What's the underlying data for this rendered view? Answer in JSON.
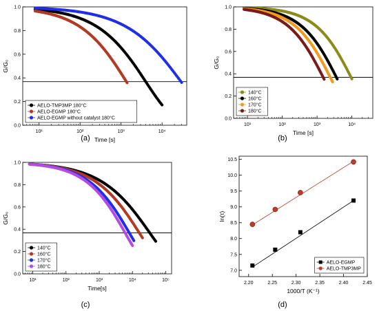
{
  "panel_labels": [
    "(a)",
    "(b)",
    "(c)",
    "(d)"
  ],
  "colors": {
    "black": "#000000",
    "brown": "#b33a23",
    "blue": "#1f2fe6",
    "olive": "#8c8a1a",
    "orange": "#f39a1e",
    "darkred": "#7a1a1a",
    "purple": "#b44be3",
    "crimson": "#c0392b"
  },
  "chart_data": [
    {
      "type": "line",
      "panel": "(a)",
      "xlabel": "Time [s]",
      "ylabel": "G/G₀",
      "xscale": "log",
      "xlim": [
        4,
        40000
      ],
      "ylim": [
        0,
        1.0
      ],
      "xticks": [
        {
          "v": 10,
          "label": "10¹"
        },
        {
          "v": 100,
          "label": "10²"
        },
        {
          "v": 1000,
          "label": "10³"
        },
        {
          "v": 10000,
          "label": "10⁴"
        }
      ],
      "yticks": [
        0.0,
        0.2,
        0.4,
        0.6,
        0.8,
        1.0
      ],
      "hline": 0.368,
      "legend_position": "bottom-left",
      "series": [
        {
          "name": "AELO-TMP3MP 180°C",
          "color": "#000000",
          "x_range": [
            8,
            10000
          ],
          "tau": 4000,
          "beta": 0.62
        },
        {
          "name": "AELO-EGMP 180°C",
          "color": "#b33a23",
          "x_range": [
            8,
            1400
          ],
          "tau": 1350,
          "beta": 0.65
        },
        {
          "name": "AELO-EGMP without catalyst 180°C",
          "color": "#1f2fe6",
          "x_range": [
            8,
            30000
          ],
          "tau": 29000,
          "beta": 0.55
        }
      ]
    },
    {
      "type": "line",
      "panel": "(b)",
      "xlabel": "Time [s]",
      "ylabel": "G/G₀",
      "xscale": "log",
      "xlim": [
        4,
        40000
      ],
      "ylim": [
        0,
        1.0
      ],
      "xticks": [
        {
          "v": 10,
          "label": "10¹"
        },
        {
          "v": 100,
          "label": "10²"
        },
        {
          "v": 1000,
          "label": "10³"
        },
        {
          "v": 10000,
          "label": "10⁴"
        }
      ],
      "yticks": [
        0.0,
        0.2,
        0.4,
        0.6,
        0.8,
        1.0
      ],
      "hline": 0.368,
      "legend_position": "bottom-left",
      "series": [
        {
          "name": "140°C",
          "color": "#8c8a1a",
          "x_range": [
            8,
            10000
          ],
          "tau": 9500,
          "beta": 0.72
        },
        {
          "name": "160°C",
          "color": "#000000",
          "x_range": [
            8,
            3800
          ],
          "tau": 3600,
          "beta": 0.72
        },
        {
          "name": "170°C",
          "color": "#f39a1e",
          "x_range": [
            8,
            2800
          ],
          "tau": 2400,
          "beta": 0.72
        },
        {
          "name": "180°C",
          "color": "#7a1a1a",
          "x_range": [
            8,
            1600
          ],
          "tau": 1500,
          "beta": 0.72
        }
      ]
    },
    {
      "type": "line",
      "panel": "(c)",
      "xlabel": "Time[s]",
      "ylabel": "G/G₀",
      "xscale": "log",
      "xlim": [
        5,
        150000
      ],
      "ylim": [
        0,
        1.0
      ],
      "xticks": [
        {
          "v": 10,
          "label": "10¹"
        },
        {
          "v": 100,
          "label": "10²"
        },
        {
          "v": 1000,
          "label": "10³"
        },
        {
          "v": 10000,
          "label": "10⁴"
        },
        {
          "v": 100000,
          "label": "10⁵"
        }
      ],
      "yticks": [
        0.0,
        0.2,
        0.4,
        0.6,
        0.8,
        1.0
      ],
      "hline": 0.368,
      "legend_position": "bottom-left",
      "series": [
        {
          "name": "140°C",
          "color": "#000000",
          "x_range": [
            8,
            50000
          ],
          "tau": 33000,
          "beta": 0.5
        },
        {
          "name": "160°C",
          "color": "#b33a23",
          "x_range": [
            8,
            20000
          ],
          "tau": 16000,
          "beta": 0.55
        },
        {
          "name": "170°C",
          "color": "#1f2fe6",
          "x_range": [
            8,
            11000
          ],
          "tau": 8000,
          "beta": 0.6
        },
        {
          "name": "180°C",
          "color": "#b44be3",
          "x_range": [
            8,
            10000
          ],
          "tau": 6000,
          "beta": 0.62
        }
      ]
    },
    {
      "type": "scatter",
      "panel": "(d)",
      "xlabel": "1000/T (K⁻¹)",
      "ylabel": "ln(τ)",
      "xlim": [
        2.18,
        2.45
      ],
      "ylim": [
        6.8,
        10.6
      ],
      "xticks": [
        2.2,
        2.25,
        2.3,
        2.35,
        2.4,
        2.45
      ],
      "yticks": [
        7.0,
        7.5,
        8.0,
        8.5,
        9.0,
        9.5,
        10.0,
        10.5
      ],
      "legend_position": "bottom-right",
      "series": [
        {
          "name": "AELO-EGMP",
          "color": "#000000",
          "marker": "square",
          "x": [
            2.208,
            2.256,
            2.309,
            2.421
          ],
          "y": [
            7.15,
            7.65,
            8.2,
            9.2
          ],
          "fit": [
            [
              2.208,
              7.1
            ],
            [
              2.421,
              9.2
            ]
          ]
        },
        {
          "name": "AELO-TMP3MP",
          "color": "#c0392b",
          "marker": "circle",
          "x": [
            2.208,
            2.256,
            2.309,
            2.421
          ],
          "y": [
            8.45,
            8.92,
            9.45,
            10.42
          ],
          "fit": [
            [
              2.208,
              8.43
            ],
            [
              2.421,
              10.44
            ]
          ]
        }
      ]
    }
  ]
}
